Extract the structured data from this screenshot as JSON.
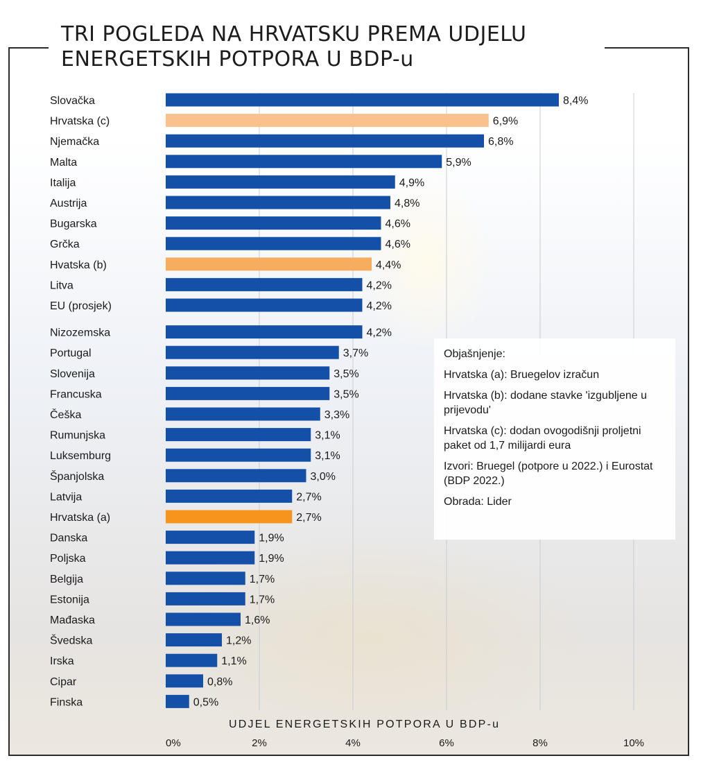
{
  "chart_data": {
    "type": "bar",
    "orientation": "horizontal",
    "title": "TRI POGLEDA NA HRVATSKU PREMA UDJELU ENERGETSKIH POTPORA U BDP-u",
    "xlabel": "UDJEL ENERGETSKIH POTPORA U BDP-u",
    "xlim": [
      0,
      10
    ],
    "xticks": [
      "0%",
      "2%",
      "4%",
      "6%",
      "8%",
      "10%"
    ],
    "bar_color": "#1450a8",
    "highlight_colors": {
      "c": "#f9c18e",
      "b": "#f6ad5f",
      "a": "#f7941d"
    },
    "categories": [
      "Slovačka",
      "Hrvatska (c)",
      "Njemačka",
      "Malta",
      "Italija",
      "Austrija",
      "Bugarska",
      "Grčka",
      "Hvatska (b)",
      "Litva",
      "EU (prosjek)",
      "Nizozemska",
      "Portugal",
      "Slovenija",
      "Francuska",
      "Češka",
      "Rumunjska",
      "Luksemburg",
      "Španjolska",
      "Latvija",
      "Hrvatska (a)",
      "Danska",
      "Poljska",
      "Belgija",
      "Estonija",
      "Mađaska",
      "Švedska",
      "Irska",
      "Cipar",
      "Finska"
    ],
    "values": [
      8.4,
      6.9,
      6.8,
      5.9,
      4.9,
      4.8,
      4.6,
      4.6,
      4.4,
      4.2,
      4.2,
      4.2,
      3.7,
      3.5,
      3.5,
      3.3,
      3.1,
      3.1,
      3.0,
      2.7,
      2.7,
      1.9,
      1.9,
      1.7,
      1.7,
      1.6,
      1.2,
      1.1,
      0.8,
      0.5
    ],
    "value_labels": [
      "8,4%",
      "6,9%",
      "6,8%",
      "5,9%",
      "4,9%",
      "4,8%",
      "4,6%",
      "4,6%",
      "4,4%",
      "4,2%",
      "4,2%",
      "4,2%",
      "3,7%",
      "3,5%",
      "3,5%",
      "3,3%",
      "3,1%",
      "3,1%",
      "3,0%",
      "2,7%",
      "2,7%",
      "1,9%",
      "1,9%",
      "1,7%",
      "1,7%",
      "1,6%",
      "1,2%",
      "1,1%",
      "0,8%",
      "0,5%"
    ],
    "highlight": [
      "",
      "c",
      "",
      "",
      "",
      "",
      "",
      "",
      "b",
      "",
      "",
      "",
      "",
      "",
      "",
      "",
      "",
      "",
      "",
      "",
      "a",
      "",
      "",
      "",
      "",
      "",
      "",
      "",
      "",
      ""
    ]
  },
  "legend": {
    "heading": "Objašnjenje:",
    "a": "Hrvatska (a): Bruegelov izračun",
    "b": "Hrvatska (b): dodane stavke 'izgubljene u prijevodu'",
    "c": "Hrvatska (c): dodan ovogodišnji proljetni paket od 1,7 milijardi eura",
    "sources": "Izvori: Bruegel (potpore u 2022.) i Eurostat (BDP 2022.)",
    "credit": "Obrada: Lider"
  }
}
